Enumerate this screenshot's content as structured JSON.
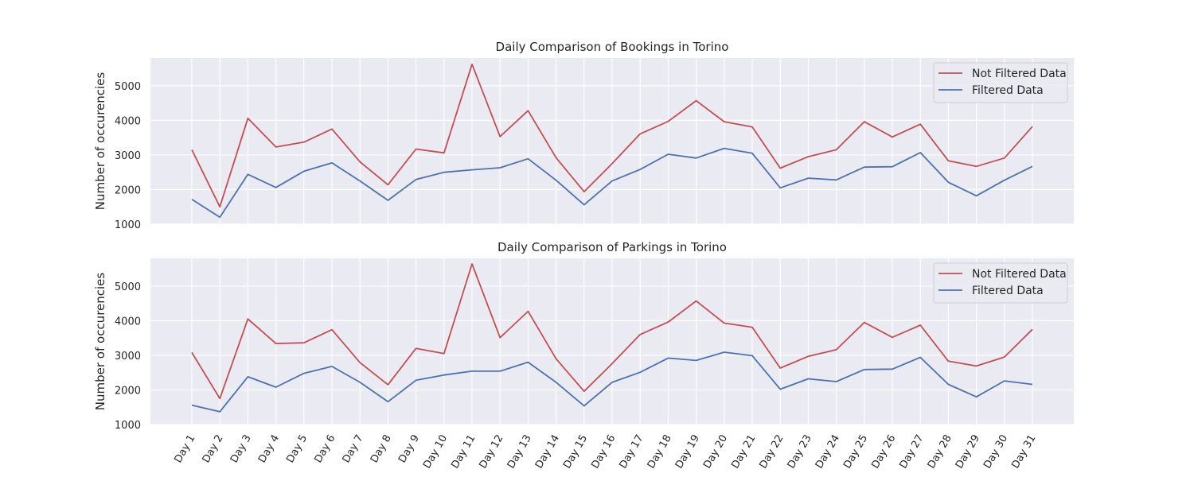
{
  "chart_data": [
    {
      "type": "line",
      "title": "Daily Comparison of Bookings in Torino",
      "xlabel": "",
      "ylabel": "Number of occurencies",
      "categories": [
        "Day 1",
        "Day 2",
        "Day 3",
        "Day 4",
        "Day 5",
        "Day 6",
        "Day 7",
        "Day 8",
        "Day 9",
        "Day 10",
        "Day 11",
        "Day 12",
        "Day 13",
        "Day 14",
        "Day 15",
        "Day 16",
        "Day 17",
        "Day 18",
        "Day 19",
        "Day 20",
        "Day 21",
        "Day 22",
        "Day 23",
        "Day 24",
        "Day 25",
        "Day 26",
        "Day 27",
        "Day 28",
        "Day 29",
        "Day 30",
        "Day 31"
      ],
      "ylim": [
        1000,
        5800
      ],
      "yticks": [
        1000,
        2000,
        3000,
        4000,
        5000
      ],
      "grid": true,
      "legend": "top-right",
      "series": [
        {
          "name": "Not Filtered Data",
          "color": "#c44e52",
          "values": [
            3150,
            1500,
            4060,
            3230,
            3370,
            3750,
            2800,
            2140,
            3170,
            3060,
            5620,
            3530,
            4280,
            2920,
            1940,
            2750,
            3610,
            3970,
            4570,
            3960,
            3810,
            2620,
            2950,
            3150,
            3960,
            3520,
            3890,
            2830,
            2670,
            2910,
            3820
          ]
        },
        {
          "name": "Filtered Data",
          "color": "#4c72b0",
          "values": [
            1720,
            1200,
            2440,
            2060,
            2530,
            2770,
            2250,
            1690,
            2290,
            2500,
            2570,
            2630,
            2890,
            2270,
            1560,
            2250,
            2580,
            3020,
            2910,
            3190,
            3050,
            2050,
            2330,
            2280,
            2650,
            2660,
            3070,
            2210,
            1820,
            2270,
            2670
          ]
        }
      ]
    },
    {
      "type": "line",
      "title": "Daily Comparison of Parkings in Torino",
      "xlabel": "",
      "ylabel": "Number of occurencies",
      "categories": [
        "Day 1",
        "Day 2",
        "Day 3",
        "Day 4",
        "Day 5",
        "Day 6",
        "Day 7",
        "Day 8",
        "Day 9",
        "Day 10",
        "Day 11",
        "Day 12",
        "Day 13",
        "Day 14",
        "Day 15",
        "Day 16",
        "Day 17",
        "Day 18",
        "Day 19",
        "Day 20",
        "Day 21",
        "Day 22",
        "Day 23",
        "Day 24",
        "Day 25",
        "Day 26",
        "Day 27",
        "Day 28",
        "Day 29",
        "Day 30",
        "Day 31"
      ],
      "ylim": [
        1000,
        5800
      ],
      "yticks": [
        1000,
        2000,
        3000,
        4000,
        5000
      ],
      "grid": true,
      "legend": "top-right",
      "series": [
        {
          "name": "Not Filtered Data",
          "color": "#c44e52",
          "values": [
            3080,
            1750,
            4050,
            3340,
            3360,
            3740,
            2790,
            2150,
            3200,
            3050,
            5640,
            3510,
            4270,
            2900,
            1960,
            2760,
            3600,
            3960,
            4570,
            3930,
            3810,
            2630,
            2970,
            3160,
            3950,
            3520,
            3870,
            2830,
            2690,
            2950,
            3750
          ]
        },
        {
          "name": "Filtered Data",
          "color": "#4c72b0",
          "values": [
            1560,
            1370,
            2380,
            2080,
            2480,
            2680,
            2220,
            1660,
            2280,
            2430,
            2540,
            2540,
            2800,
            2220,
            1540,
            2220,
            2510,
            2920,
            2850,
            3090,
            2990,
            2020,
            2320,
            2240,
            2590,
            2600,
            2940,
            2160,
            1800,
            2260,
            2160
          ]
        }
      ]
    }
  ]
}
